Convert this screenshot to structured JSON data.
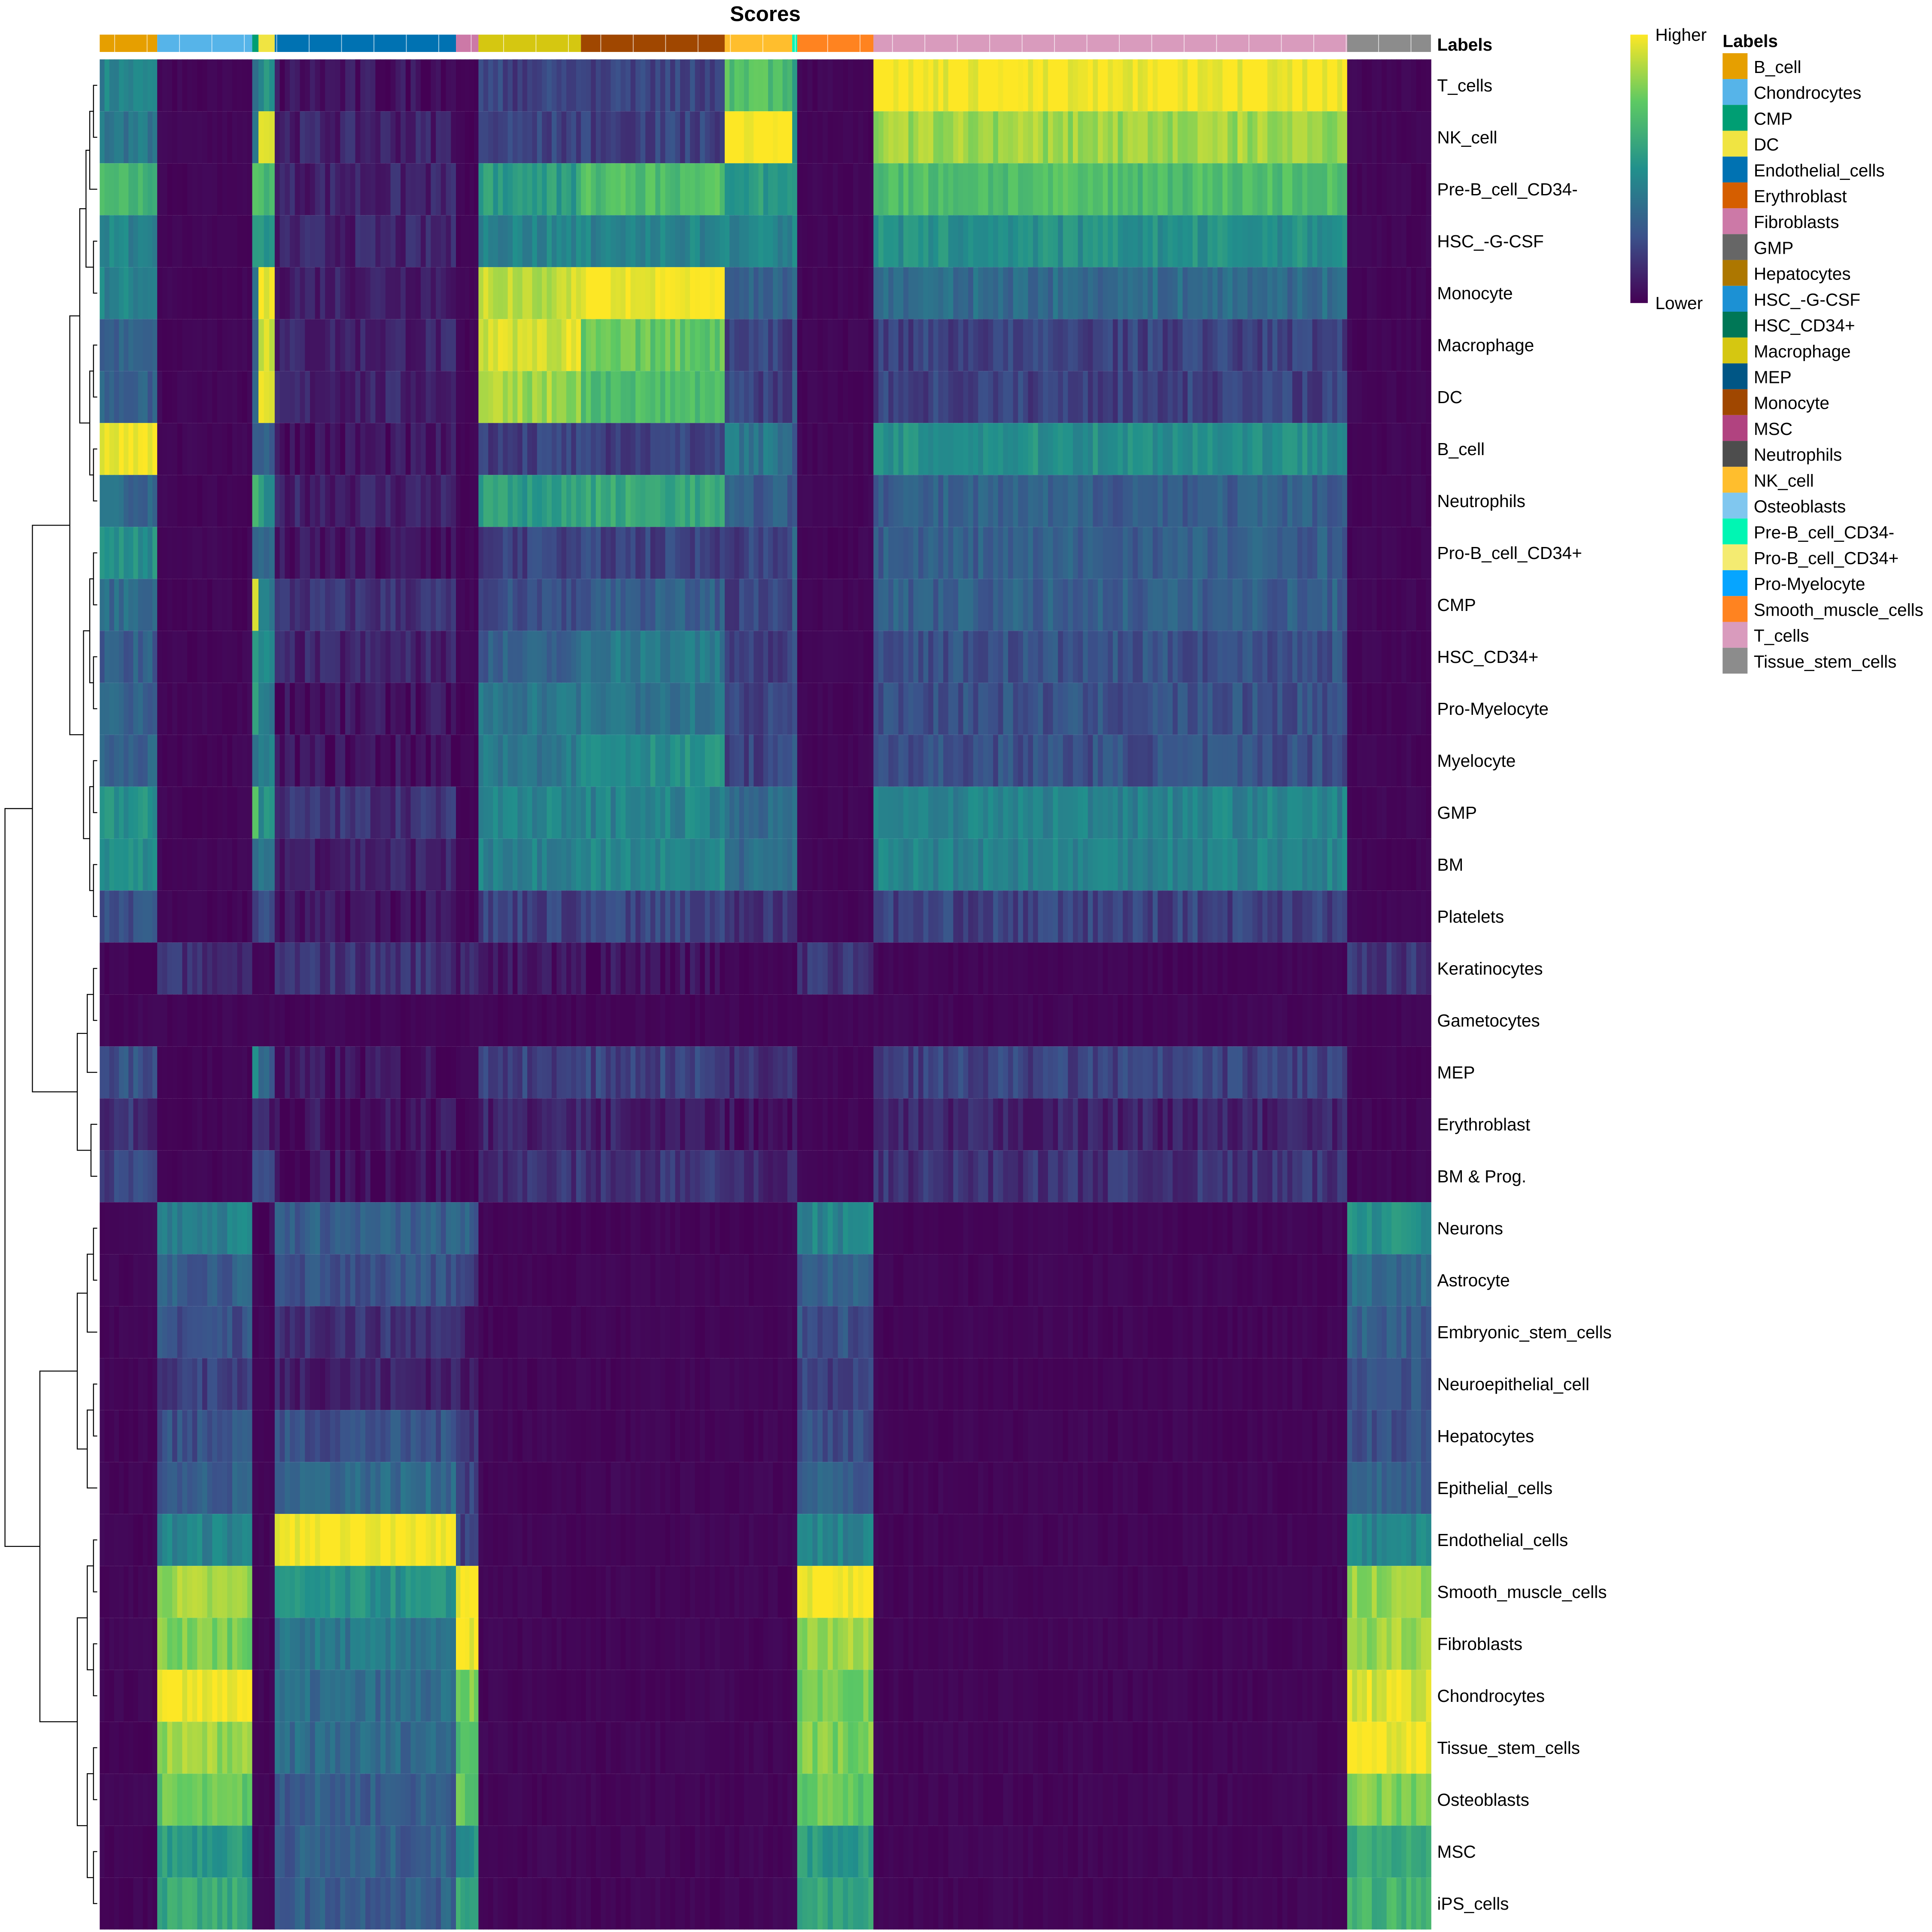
{
  "chart_data": {
    "type": "heatmap",
    "title": "Scores",
    "annotation_title": "Labels",
    "colorbar": {
      "high_label": "Higher",
      "low_label": "Lower",
      "palette": "viridis"
    },
    "column_groups": [
      {
        "label": "B_cell",
        "n": 46
      },
      {
        "label": "Chondrocytes",
        "n": 76
      },
      {
        "label": "CMP",
        "n": 5
      },
      {
        "label": "DC",
        "n": 13
      },
      {
        "label": "Endothelial_cells",
        "n": 145
      },
      {
        "label": "Fibroblasts",
        "n": 18
      },
      {
        "label": "Macrophage",
        "n": 82
      },
      {
        "label": "Monocyte",
        "n": 115
      },
      {
        "label": "NK_cell",
        "n": 54
      },
      {
        "label": "Pre-B_cell_CD34-",
        "n": 4
      },
      {
        "label": "Smooth_muscle_cells",
        "n": 61
      },
      {
        "label": "T_cells",
        "n": 379
      },
      {
        "label": "Tissue_stem_cells",
        "n": 67
      }
    ],
    "rows": [
      "T_cells",
      "NK_cell",
      "Pre-B_cell_CD34-",
      "HSC_-G-CSF",
      "Monocyte",
      "Macrophage",
      "DC",
      "B_cell",
      "Neutrophils",
      "Pro-B_cell_CD34+",
      "CMP",
      "HSC_CD34+",
      "Pro-Myelocyte",
      "Myelocyte",
      "GMP",
      "BM",
      "Platelets",
      "Keratinocytes",
      "Gametocytes",
      "MEP",
      "Erythroblast",
      "BM & Prog.",
      "Neurons",
      "Astrocyte",
      "Embryonic_stem_cells",
      "Neuroepithelial_cell",
      "Hepatocytes",
      "Epithelial_cells",
      "Endothelial_cells",
      "Smooth_muscle_cells",
      "Fibroblasts",
      "Chondrocytes",
      "Tissue_stem_cells",
      "Osteoblasts",
      "MSC",
      "iPS_cells"
    ],
    "values": [
      [
        0.45,
        0,
        0.4,
        0.5,
        0.05,
        0,
        0.2,
        0.2,
        0.7,
        0.5,
        0,
        1,
        0
      ],
      [
        0.4,
        0,
        0.4,
        0.95,
        0.1,
        0,
        0.2,
        0.2,
        1,
        0.5,
        0,
        0.85,
        0
      ],
      [
        0.65,
        0,
        0.7,
        0.7,
        0.1,
        0,
        0.55,
        0.7,
        0.55,
        0.5,
        0,
        0.7,
        0
      ],
      [
        0.45,
        0,
        0.5,
        0.5,
        0.1,
        0,
        0.45,
        0.45,
        0.45,
        0.5,
        0,
        0.5,
        0
      ],
      [
        0.45,
        0,
        0.4,
        1,
        0.1,
        0,
        0.9,
        1,
        0.3,
        0.4,
        0,
        0.35,
        0
      ],
      [
        0.3,
        0,
        0.3,
        0.9,
        0.1,
        0,
        0.95,
        0.75,
        0.2,
        0.3,
        0,
        0.2,
        0
      ],
      [
        0.3,
        0,
        0.3,
        1,
        0.1,
        0,
        0.85,
        0.7,
        0.2,
        0.3,
        0,
        0.2,
        0
      ],
      [
        1,
        0,
        0.3,
        0.3,
        0.05,
        0,
        0.2,
        0.2,
        0.4,
        0.3,
        0,
        0.5,
        0
      ],
      [
        0.35,
        0,
        0.6,
        0.5,
        0.1,
        0,
        0.55,
        0.6,
        0.3,
        0.3,
        0,
        0.3,
        0
      ],
      [
        0.5,
        0,
        0.3,
        0.3,
        0.05,
        0,
        0.2,
        0.2,
        0.2,
        0.3,
        0,
        0.3,
        0
      ],
      [
        0.35,
        0,
        0.95,
        0.4,
        0.15,
        0,
        0.25,
        0.3,
        0.2,
        0.3,
        0,
        0.3,
        0
      ],
      [
        0.3,
        0,
        0.55,
        0.5,
        0.1,
        0,
        0.3,
        0.4,
        0.2,
        0.3,
        0,
        0.25,
        0
      ],
      [
        0.3,
        0,
        0.6,
        0.4,
        0.05,
        0,
        0.4,
        0.4,
        0.2,
        0.3,
        0,
        0.25,
        0
      ],
      [
        0.3,
        0,
        0.4,
        0.4,
        0.05,
        0,
        0.4,
        0.5,
        0.2,
        0.3,
        0,
        0.25,
        0
      ],
      [
        0.5,
        0,
        0.8,
        0.5,
        0.15,
        0,
        0.45,
        0.45,
        0.35,
        0.4,
        0,
        0.45,
        0
      ],
      [
        0.5,
        0,
        0.35,
        0.4,
        0.1,
        0,
        0.45,
        0.45,
        0.35,
        0.4,
        0,
        0.45,
        0
      ],
      [
        0.25,
        0,
        0.2,
        0.2,
        0.05,
        0,
        0.2,
        0.2,
        0.15,
        0.2,
        0,
        0.2,
        0
      ],
      [
        0,
        0.15,
        0,
        0,
        0.15,
        0.1,
        0.05,
        0.05,
        0,
        0,
        0.15,
        0,
        0.15
      ],
      [
        0,
        0,
        0,
        0,
        0,
        0,
        0,
        0,
        0,
        0,
        0,
        0,
        0
      ],
      [
        0.25,
        0,
        0.5,
        0.3,
        0.05,
        0,
        0.2,
        0.2,
        0.15,
        0.2,
        0,
        0.2,
        0
      ],
      [
        0.15,
        0,
        0.1,
        0.1,
        0.05,
        0,
        0.1,
        0.1,
        0.05,
        0.1,
        0,
        0.1,
        0
      ],
      [
        0.2,
        0,
        0.3,
        0.2,
        0.05,
        0,
        0.15,
        0.15,
        0.1,
        0.15,
        0,
        0.15,
        0
      ],
      [
        0,
        0.45,
        0,
        0.05,
        0.3,
        0.3,
        0,
        0,
        0,
        0,
        0.45,
        0,
        0.5
      ],
      [
        0,
        0.3,
        0,
        0,
        0.25,
        0.2,
        0,
        0,
        0,
        0,
        0.3,
        0,
        0.35
      ],
      [
        0,
        0.25,
        0,
        0,
        0.15,
        0.1,
        0,
        0,
        0,
        0,
        0.25,
        0,
        0.3
      ],
      [
        0,
        0.2,
        0,
        0,
        0.1,
        0.1,
        0,
        0,
        0,
        0,
        0.2,
        0,
        0.25
      ],
      [
        0,
        0.25,
        0,
        0,
        0.25,
        0.15,
        0,
        0,
        0,
        0,
        0.25,
        0,
        0.25
      ],
      [
        0,
        0.3,
        0,
        0,
        0.35,
        0.2,
        0,
        0,
        0,
        0,
        0.3,
        0,
        0.3
      ],
      [
        0,
        0.45,
        0,
        0,
        1,
        0.2,
        0,
        0,
        0,
        0,
        0.45,
        0,
        0.45
      ],
      [
        0,
        0.85,
        0,
        0,
        0.5,
        1,
        0,
        0,
        0,
        0,
        1,
        0,
        0.85
      ],
      [
        0,
        0.8,
        0,
        0,
        0.4,
        1,
        0,
        0,
        0,
        0,
        0.85,
        0,
        0.85
      ],
      [
        0,
        1,
        0,
        0,
        0.35,
        0.8,
        0,
        0,
        0,
        0,
        0.8,
        0,
        0.95
      ],
      [
        0,
        0.85,
        0,
        0,
        0.35,
        0.7,
        0,
        0,
        0,
        0,
        0.8,
        0,
        1
      ],
      [
        0,
        0.75,
        0,
        0,
        0.3,
        0.75,
        0,
        0,
        0,
        0,
        0.75,
        0,
        0.8
      ],
      [
        0,
        0.55,
        0,
        0,
        0.3,
        0.5,
        0,
        0,
        0,
        0,
        0.55,
        0,
        0.6
      ],
      [
        0,
        0.6,
        0,
        0,
        0.3,
        0.6,
        0,
        0,
        0,
        0,
        0.6,
        0,
        0.65
      ]
    ],
    "legend": [
      {
        "label": "B_cell",
        "color": "#E69F00"
      },
      {
        "label": "Chondrocytes",
        "color": "#56B4E9"
      },
      {
        "label": "CMP",
        "color": "#009E73"
      },
      {
        "label": "DC",
        "color": "#F0E442"
      },
      {
        "label": "Endothelial_cells",
        "color": "#0072B2"
      },
      {
        "label": "Erythroblast",
        "color": "#D55E00"
      },
      {
        "label": "Fibroblasts",
        "color": "#CC79A7"
      },
      {
        "label": "GMP",
        "color": "#666666"
      },
      {
        "label": "Hepatocytes",
        "color": "#AD7700"
      },
      {
        "label": "HSC_-G-CSF",
        "color": "#1C91D4"
      },
      {
        "label": "HSC_CD34+",
        "color": "#007756"
      },
      {
        "label": "Macrophage",
        "color": "#D5C711"
      },
      {
        "label": "MEP",
        "color": "#005685"
      },
      {
        "label": "Monocyte",
        "color": "#A04700"
      },
      {
        "label": "MSC",
        "color": "#B14380"
      },
      {
        "label": "Neutrophils",
        "color": "#4D4D4D"
      },
      {
        "label": "NK_cell",
        "color": "#FFBE2D"
      },
      {
        "label": "Osteoblasts",
        "color": "#80C7EF"
      },
      {
        "label": "Pre-B_cell_CD34-",
        "color": "#00F6B3"
      },
      {
        "label": "Pro-B_cell_CD34+",
        "color": "#F4EB71"
      },
      {
        "label": "Pro-Myelocyte",
        "color": "#06A5FF"
      },
      {
        "label": "Smooth_muscle_cells",
        "color": "#FF8320"
      },
      {
        "label": "T_cells",
        "color": "#D99BBD"
      },
      {
        "label": "Tissue_stem_cells",
        "color": "#8C8C8C"
      }
    ]
  }
}
